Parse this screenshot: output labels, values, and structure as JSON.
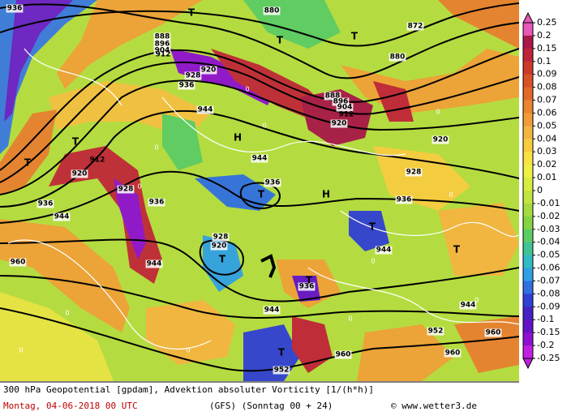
{
  "map": {
    "contour_labels": [
      "936",
      "888",
      "896",
      "904",
      "912",
      "920",
      "928",
      "936",
      "944",
      "880",
      "872",
      "880",
      "888",
      "896",
      "904",
      "912",
      "920",
      "920",
      "928",
      "936",
      "944",
      "936",
      "912",
      "920",
      "928",
      "936",
      "944",
      "936",
      "960",
      "944",
      "928",
      "920",
      "936",
      "944",
      "944",
      "944",
      "952",
      "960",
      "960",
      "960",
      "952"
    ],
    "pressure_centers": [
      "T",
      "T",
      "T",
      "T",
      "T",
      "H",
      "T",
      "H",
      "T",
      "T",
      "T",
      "T",
      "T"
    ],
    "zero_labels": [
      "0",
      "0",
      "0",
      "0",
      "0",
      "0",
      "0",
      "0",
      "0",
      "0",
      "0",
      "0"
    ]
  },
  "legend": {
    "labels": [
      "0.25",
      "0.2",
      "0.15",
      "0.1",
      "0.09",
      "0.08",
      "0.07",
      "0.06",
      "0.05",
      "0.04",
      "0.03",
      "0.02",
      "0.01",
      "0",
      "-0.01",
      "-0.02",
      "-0.03",
      "-0.04",
      "-0.05",
      "-0.06",
      "-0.07",
      "-0.08",
      "-0.09",
      "-0.1",
      "-0.15",
      "-0.2",
      "-0.25"
    ],
    "colors": [
      "#e858b8",
      "#a81848",
      "#c02438",
      "#cc3a2a",
      "#d85228",
      "#e26a28",
      "#ea8430",
      "#f09c38",
      "#f4b440",
      "#f8cc40",
      "#f8e244",
      "#eef044",
      "#d8ec40",
      "#c0e440",
      "#a4dc40",
      "#84d444",
      "#5ccc64",
      "#40c494",
      "#30bcc4",
      "#30a0e4",
      "#3070e0",
      "#3040d4",
      "#4422c4",
      "#6412c8",
      "#9010d0",
      "#c020e0"
    ]
  },
  "footer": {
    "line1": "300 hPa Geopotential [gpdam], Advektion absoluter Vorticity [1/(h*h)]",
    "date": "Montag, 04-06-2018  00 UTC",
    "model": "(GFS)  (Sonntag 00 + 24)",
    "site": "© www.wetter3.de"
  }
}
